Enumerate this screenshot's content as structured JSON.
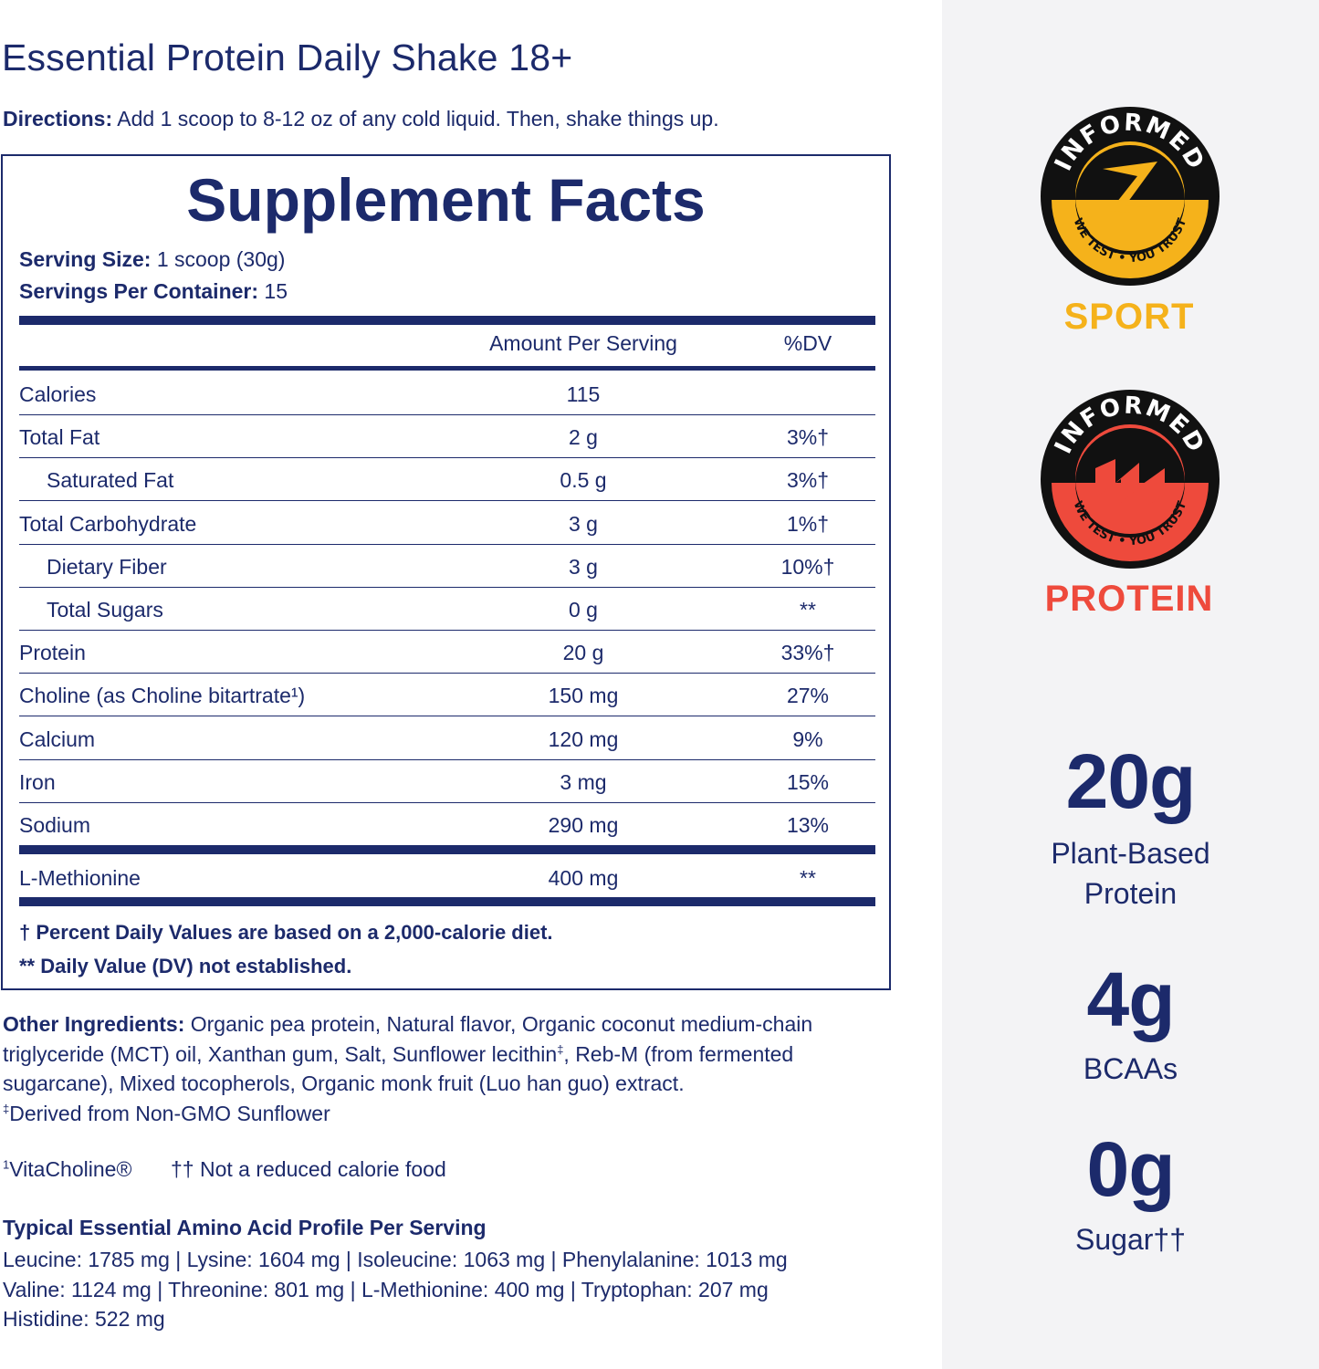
{
  "product_title": "Essential Protein Daily Shake 18+",
  "directions": {
    "label": "Directions:",
    "text": " Add 1 scoop to 8-12 oz of any cold liquid. Then, shake things up."
  },
  "facts": {
    "title": "Supplement Facts",
    "serving_size_label": "Serving Size:",
    "serving_size_value": " 1 scoop (30g)",
    "servings_label": "Servings Per Container:",
    "servings_value": " 15",
    "header_amount": "Amount Per Serving",
    "header_dv": "%DV",
    "rows": [
      {
        "name": "Calories",
        "amount": "115",
        "dv": ""
      },
      {
        "name": "Total Fat",
        "amount": "2 g",
        "dv": "3%†"
      },
      {
        "name": "Saturated Fat",
        "amount": "0.5 g",
        "dv": "3%†"
      },
      {
        "name": "Total Carbohydrate",
        "amount": "3 g",
        "dv": "1%†"
      },
      {
        "name": "Dietary Fiber",
        "amount": "3 g",
        "dv": "10%†"
      },
      {
        "name": "Total Sugars",
        "amount": "0 g",
        "dv": "**"
      },
      {
        "name": "Protein",
        "amount": "20 g",
        "dv": "33%†"
      },
      {
        "name": "Choline (as Choline bitartrate¹)",
        "amount": "150 mg",
        "dv": "27%"
      },
      {
        "name": "Calcium",
        "amount": "120 mg",
        "dv": "9%"
      },
      {
        "name": "Iron",
        "amount": "3 mg",
        "dv": "15%"
      },
      {
        "name": "Sodium",
        "amount": "290 mg",
        "dv": "13%"
      }
    ],
    "extra_row": {
      "name": "L-Methionine",
      "amount": "400 mg",
      "dv": "**"
    },
    "footnote_1": "† Percent Daily Values are based on a 2,000-calorie diet.",
    "footnote_2": "** Daily Value (DV) not established."
  },
  "ingredients": {
    "label": "Other Ingredients:",
    "text_1": " Organic pea protein, Natural flavor, Organic coconut medium-chain triglyceride (MCT) oil, Xanthan gum, Salt, Sunflower lecithin",
    "sup_1": "‡",
    "text_2": ", Reb-M (from fermented sugarcane), Mixed tocopherols, Organic monk fruit (Luo han guo) extract.",
    "sup_2": "‡",
    "text_3": "Derived from Non-GMO Sunflower"
  },
  "notes": {
    "note_1_sup": "1",
    "note_1": "VitaCholine®",
    "note_2": "†† Not a reduced calorie food"
  },
  "amino": {
    "title": "Typical Essential Amino Acid Profile Per Serving",
    "line_1": "Leucine: 1785 mg | Lysine: 1604 mg | Isoleucine: 1063 mg | Phenylalanine: 1013 mg",
    "line_2": "Valine: 1124 mg | Threonine: 801 mg | L-Methionine: 400 mg | Tryptophan: 207 mg",
    "line_3": "Histidine: 522 mg"
  },
  "badges": [
    {
      "ring_text": "INFORMED",
      "bottom_text": "WE TEST • YOU TRUST",
      "label": "SPORT",
      "color": "#f5b21b"
    },
    {
      "ring_text": "INFORMED",
      "bottom_text": "WE TEST • YOU TRUST",
      "label": "PROTEIN",
      "color": "#ee4a3c"
    }
  ],
  "stats": [
    {
      "value": "20g",
      "label_1": "Plant-Based",
      "label_2": "Protein"
    },
    {
      "value": "4g",
      "label_1": "BCAAs"
    },
    {
      "value": "0g",
      "label_1": "Sugar††"
    }
  ],
  "colors": {
    "navy": "#1c2a6b",
    "sport": "#f5b21b",
    "protein": "#ee4a3c",
    "panel": "#f3f3f5"
  }
}
